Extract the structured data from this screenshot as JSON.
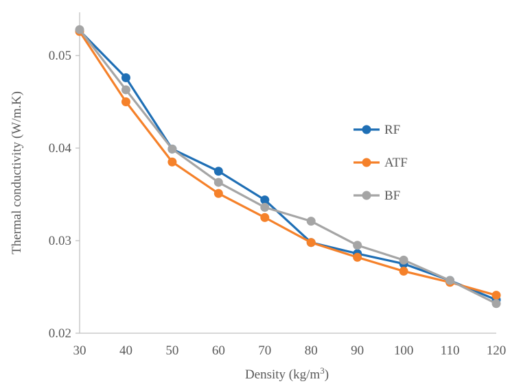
{
  "chart_data": {
    "type": "line",
    "title": "",
    "xlabel": "Density (kg/m",
    "xlabel_superscript": "3",
    "xlabel_suffix": ")",
    "ylabel": "Thermal conductivity (W/m.K)",
    "xlim": [
      30,
      120
    ],
    "ylim": [
      0.02,
      0.05
    ],
    "x_ticks": [
      "30",
      "40",
      "50",
      "60",
      "70",
      "80",
      "90",
      "100",
      "110",
      "120"
    ],
    "y_ticks": [
      "0.02",
      "0.03",
      "0.04",
      "0.05"
    ],
    "grid": false,
    "legend_position": "right",
    "x": [
      30,
      40,
      50,
      60,
      70,
      80,
      90,
      100,
      110,
      120
    ],
    "series": [
      {
        "name": "RF",
        "color": "#1f6fb5",
        "values": [
          0.0527,
          0.0476,
          0.0399,
          0.0375,
          0.0344,
          0.0298,
          0.0286,
          0.0275,
          0.0257,
          0.0236
        ]
      },
      {
        "name": "ATF",
        "color": "#f5812a",
        "values": [
          0.0526,
          0.045,
          0.0385,
          0.0351,
          0.0325,
          0.0298,
          0.0282,
          0.0267,
          0.0255,
          0.0241
        ]
      },
      {
        "name": "BF",
        "color": "#a5a5a5",
        "values": [
          0.0528,
          0.0463,
          0.0399,
          0.0363,
          0.0336,
          0.0321,
          0.0295,
          0.0279,
          0.0257,
          0.0232
        ]
      }
    ]
  }
}
